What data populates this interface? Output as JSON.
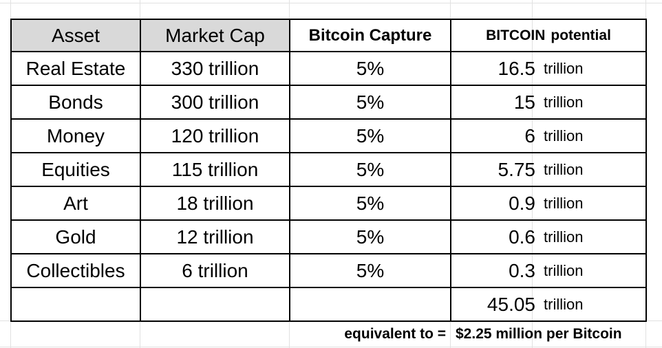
{
  "headers": {
    "asset": "Asset",
    "market_cap": "Market Cap",
    "capture": "Bitcoin Capture",
    "potential_a": "BITCOIN",
    "potential_b": "potential"
  },
  "rows": [
    {
      "asset": "Real Estate",
      "market_cap": "330 trillion",
      "capture": "5%",
      "potential": "16.5",
      "unit": "trillion"
    },
    {
      "asset": "Bonds",
      "market_cap": "300 trillion",
      "capture": "5%",
      "potential": "15",
      "unit": "trillion"
    },
    {
      "asset": "Money",
      "market_cap": "120 trillion",
      "capture": "5%",
      "potential": "6",
      "unit": "trillion"
    },
    {
      "asset": "Equities",
      "market_cap": "115 trillion",
      "capture": "5%",
      "potential": "5.75",
      "unit": "trillion"
    },
    {
      "asset": "Art",
      "market_cap": "18 trillion",
      "capture": "5%",
      "potential": "0.9",
      "unit": "trillion"
    },
    {
      "asset": "Gold",
      "market_cap": "12 trillion",
      "capture": "5%",
      "potential": "0.6",
      "unit": "trillion"
    },
    {
      "asset": "Collectibles",
      "market_cap": "6 trillion",
      "capture": "5%",
      "potential": "0.3",
      "unit": "trillion"
    }
  ],
  "total": {
    "value": "45.05",
    "unit": "trillion"
  },
  "footer": {
    "label": "equivalent to =",
    "value": "$2.25 million per Bitcoin"
  }
}
